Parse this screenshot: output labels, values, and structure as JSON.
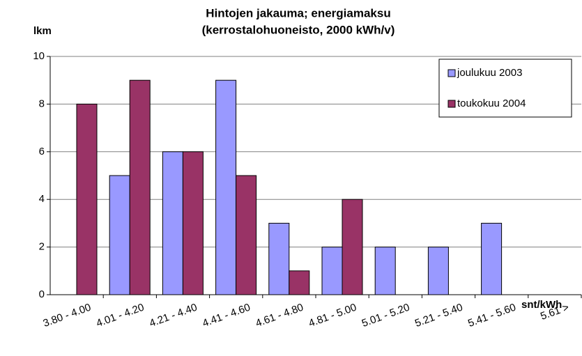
{
  "chart_data": {
    "type": "bar",
    "title": "Hintojen jakauma; energiamaksu",
    "subtitle": "(kerrostalohuoneisto, 2000 kWh/v)",
    "ylabel": "lkm",
    "xlabel": "snt/kWh",
    "categories": [
      "3.80 - 4.00",
      "4.01 - 4.20",
      "4.21 - 4.40",
      "4.41 - 4.60",
      "4.61 - 4.80",
      "4.81 - 5.00",
      "5.01 - 5.20",
      "5.21 - 5.40",
      "5.41 - 5.60",
      "5.61 >"
    ],
    "series": [
      {
        "name": "joulukuu 2003",
        "color": "#9999ff",
        "values": [
          0,
          5,
          6,
          9,
          3,
          2,
          2,
          2,
          3,
          0
        ]
      },
      {
        "name": "toukokuu 2004",
        "color": "#993366",
        "values": [
          8,
          9,
          6,
          5,
          1,
          4,
          0,
          0,
          0,
          0
        ]
      }
    ],
    "ylim": [
      0,
      10
    ],
    "yticks": [
      0,
      2,
      4,
      6,
      8,
      10
    ],
    "grid": true,
    "legend": "upper right"
  }
}
